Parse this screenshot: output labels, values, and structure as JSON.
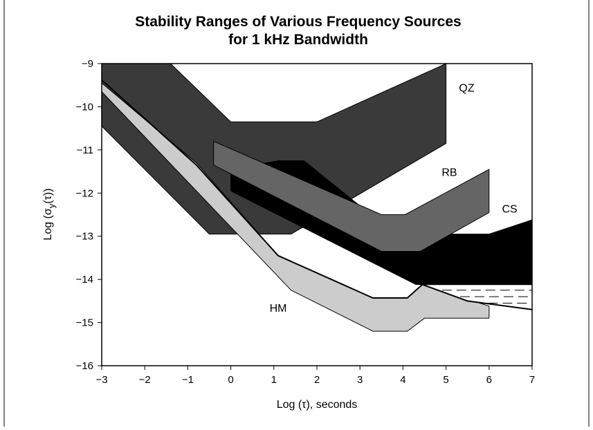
{
  "chart_data": {
    "type": "area",
    "title": "Stability Ranges of Various Frequency Sources",
    "subtitle": "for 1 kHz Bandwidth",
    "xlabel": "Log (τ), seconds",
    "ylabel_prefix": "Log (σ",
    "ylabel_sub": "y",
    "ylabel_suffix": "(τ))",
    "xlim": [
      -3,
      7
    ],
    "ylim": [
      -16,
      -9
    ],
    "xticks": [
      -3,
      -2,
      -1,
      0,
      1,
      2,
      3,
      4,
      5,
      6,
      7
    ],
    "yticks": [
      -16,
      -15,
      -14,
      -13,
      -12,
      -11,
      -10,
      -9
    ],
    "grid": false,
    "legend": "none",
    "series": [
      {
        "name": "QZ",
        "fill": "#3a3a3a",
        "polygon": [
          [
            -3,
            -9.0
          ],
          [
            -1.4,
            -9.0
          ],
          [
            0,
            -10.35
          ],
          [
            2,
            -10.35
          ],
          [
            5,
            -9.0
          ],
          [
            5,
            -10.85
          ],
          [
            1.4,
            -12.95
          ],
          [
            -0.5,
            -12.95
          ],
          [
            -3,
            -10.45
          ]
        ],
        "label_at": [
          5.3,
          -9.65
        ]
      },
      {
        "name": "CS",
        "fill": "#000000",
        "polygon": [
          [
            0,
            -11.45
          ],
          [
            1.1,
            -11.25
          ],
          [
            1.7,
            -11.25
          ],
          [
            3.5,
            -12.7
          ],
          [
            5,
            -12.95
          ],
          [
            6,
            -12.95
          ],
          [
            7,
            -12.62
          ],
          [
            7,
            -14.12
          ],
          [
            4.3,
            -14.12
          ],
          [
            0,
            -11.95
          ]
        ],
        "label_at": [
          6.3,
          -12.45
        ]
      },
      {
        "name": "RB",
        "fill": "#656565",
        "polygon": [
          [
            -0.4,
            -10.8
          ],
          [
            3.5,
            -12.5
          ],
          [
            4.05,
            -12.5
          ],
          [
            6,
            -11.45
          ],
          [
            6,
            -12.45
          ],
          [
            4.4,
            -13.35
          ],
          [
            3.5,
            -13.35
          ],
          [
            -0.4,
            -11.35
          ]
        ],
        "label_at": [
          4.9,
          -11.6
        ]
      },
      {
        "name": "HM",
        "fill": "#cccccc",
        "polygon": [
          [
            -3,
            -9.45
          ],
          [
            -0.8,
            -11.3
          ],
          [
            1.1,
            -13.45
          ],
          [
            3.3,
            -14.43
          ],
          [
            4.1,
            -14.43
          ],
          [
            4.45,
            -14.12
          ],
          [
            6,
            -14.62
          ],
          [
            6,
            -14.9
          ],
          [
            4.5,
            -14.9
          ],
          [
            4.1,
            -15.2
          ],
          [
            3.3,
            -15.2
          ],
          [
            1.4,
            -14.25
          ],
          [
            -3,
            -9.65
          ]
        ],
        "label_at": [
          0.9,
          -14.75
        ]
      }
    ],
    "theoretical_limit": {
      "points": [
        [
          -3,
          -9.38
        ],
        [
          -0.8,
          -11.35
        ],
        [
          1.1,
          -13.45
        ],
        [
          3.3,
          -14.43
        ],
        [
          4.1,
          -14.43
        ],
        [
          4.45,
          -14.12
        ],
        [
          5.5,
          -14.5
        ],
        [
          7,
          -14.7
        ]
      ],
      "hatched_region": {
        "x_range": [
          4.45,
          7
        ],
        "top": -14.12,
        "dash_levels": [
          -14.25,
          -14.4,
          -14.55
        ]
      }
    }
  }
}
